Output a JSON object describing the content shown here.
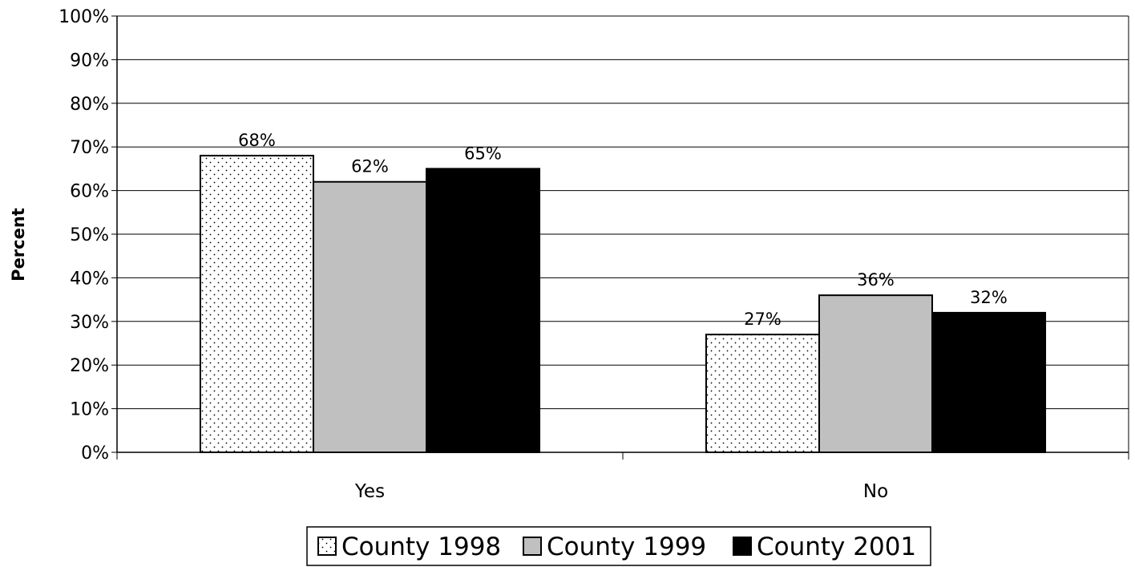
{
  "chart_data": {
    "type": "bar",
    "categories": [
      "Yes",
      "No"
    ],
    "series": [
      {
        "name": "County 1998",
        "values": [
          68,
          27
        ],
        "pattern": "dots",
        "color": "#ffffff"
      },
      {
        "name": "County 1999",
        "values": [
          62,
          36
        ],
        "pattern": "solid",
        "color": "#c0c0c0"
      },
      {
        "name": "County 2001",
        "values": [
          65,
          32
        ],
        "pattern": "solid",
        "color": "#000000"
      }
    ],
    "data_labels": [
      [
        "68%",
        "27%"
      ],
      [
        "62%",
        "36%"
      ],
      [
        "65%",
        "32%"
      ]
    ],
    "ylabel": "Percent",
    "xlabel": "",
    "ylim": [
      0,
      100
    ],
    "yticks": [
      0,
      10,
      20,
      30,
      40,
      50,
      60,
      70,
      80,
      90,
      100
    ],
    "ytick_labels": [
      "0%",
      "10%",
      "20%",
      "30%",
      "40%",
      "50%",
      "60%",
      "70%",
      "80%",
      "90%",
      "100%"
    ],
    "grid": true,
    "legend_position": "bottom-center"
  }
}
